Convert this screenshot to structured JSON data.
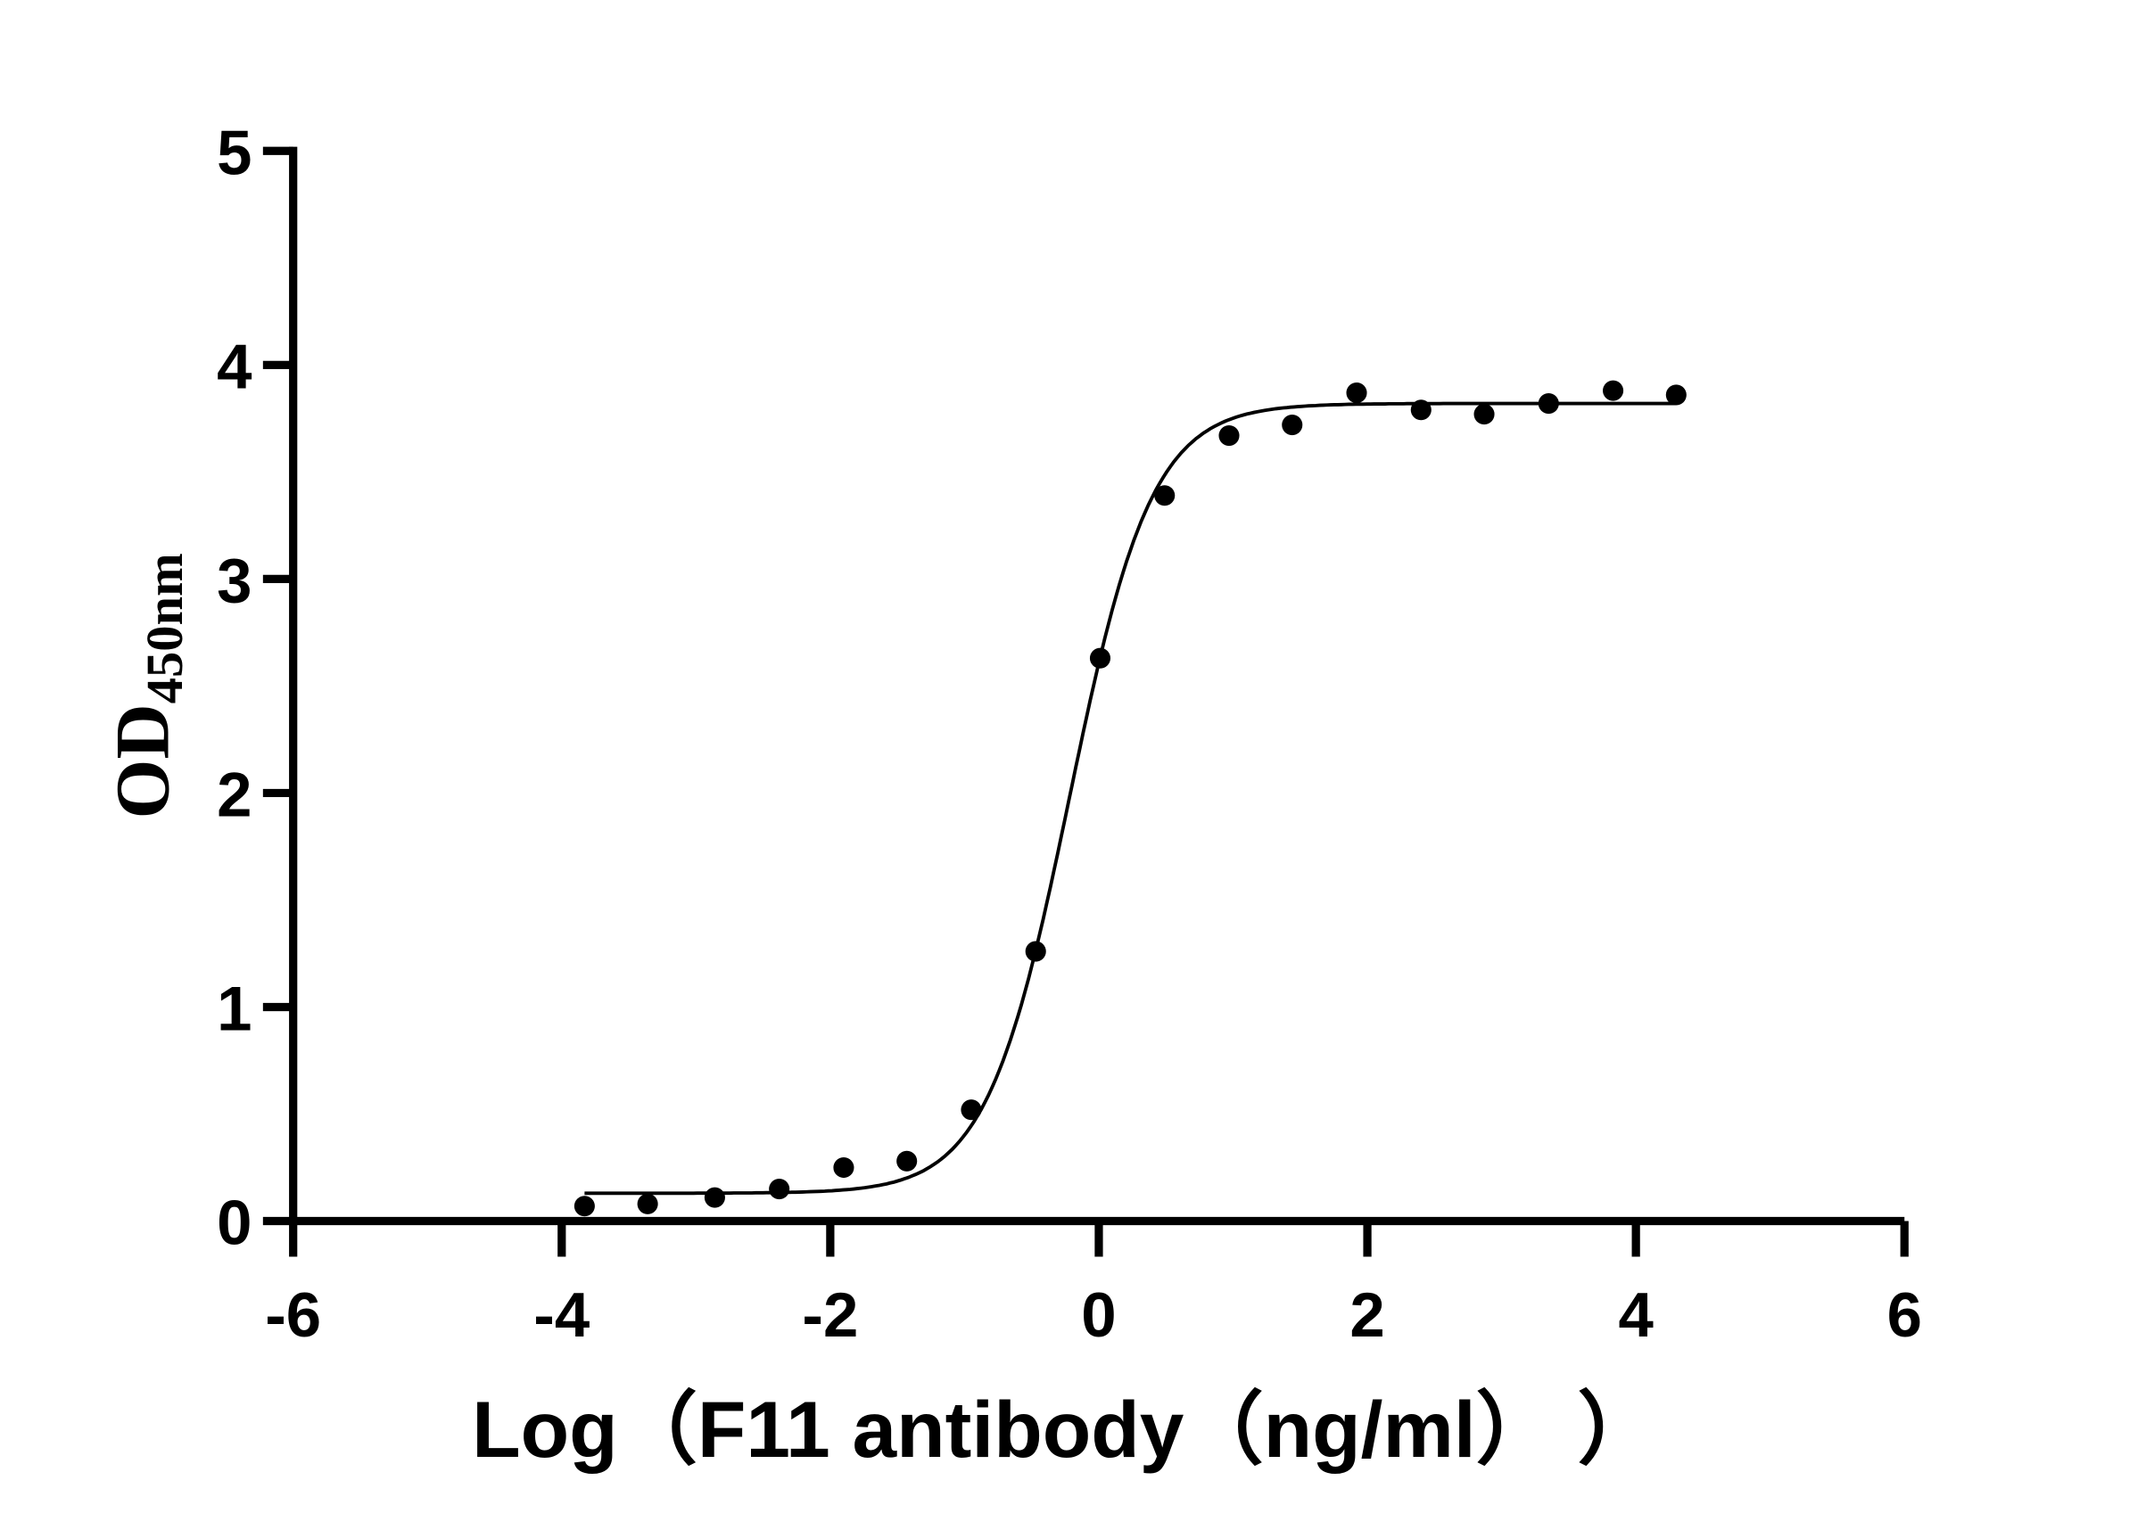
{
  "chart_data": {
    "type": "scatter",
    "title": "",
    "xlabel": "Log（F11 antibody（ng/ml）  ）",
    "ylabel": "OD",
    "ylabel_subscript": "450nm",
    "xlim": [
      -6,
      6
    ],
    "ylim": [
      0,
      5
    ],
    "xticks": [
      "-6",
      "-4",
      "-2",
      "0",
      "2",
      "4",
      "6"
    ],
    "yticks": [
      "0",
      "1",
      "2",
      "3",
      "4",
      "5"
    ],
    "grid": false,
    "legend": "none",
    "colors": {
      "points": "#000000",
      "curve": "#000000",
      "axes": "#000000"
    },
    "series": [
      {
        "x": [
          -3.83,
          -3.36,
          -2.86,
          -2.38,
          -1.9,
          -1.43,
          -0.95,
          -0.47,
          0.01,
          0.49,
          0.97,
          1.44,
          1.92,
          2.4,
          2.87,
          3.35,
          3.83,
          4.3
        ],
        "y": [
          0.07,
          0.08,
          0.11,
          0.15,
          0.25,
          0.28,
          0.52,
          1.26,
          2.63,
          3.39,
          3.67,
          3.72,
          3.87,
          3.79,
          3.77,
          3.82,
          3.88,
          3.86
        ]
      }
    ],
    "fit": {
      "model": "four-parameter logistic",
      "bottom": 0.13,
      "top": 3.82,
      "logEC50": -0.22,
      "hill_slope": 1.41,
      "x_range": [
        -3.83,
        4.3
      ]
    }
  }
}
